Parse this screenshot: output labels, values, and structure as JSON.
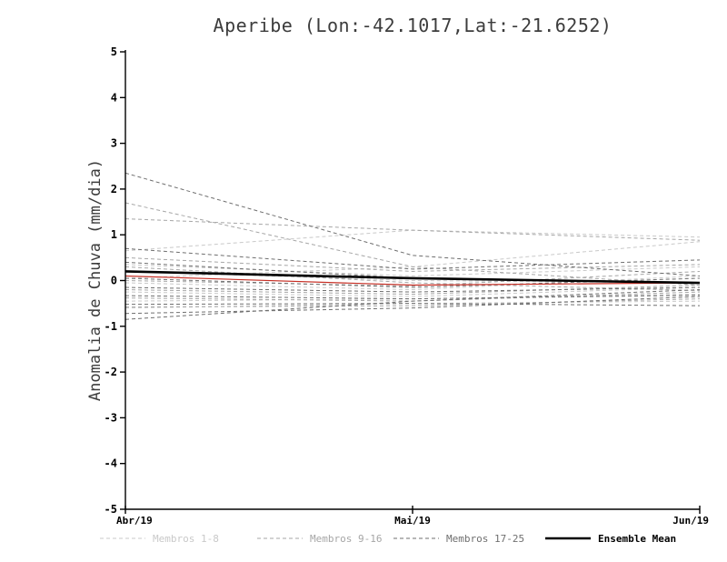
{
  "chart_data": {
    "type": "line",
    "title": "Aperibe (Lon:-42.1017,Lat:-21.6252)",
    "ylabel": "Anomalia de Chuva (mm/dia)",
    "x_tick_labels": [
      "Abr/19",
      "Mai/19",
      "Jun/19"
    ],
    "ylim": [
      -5,
      5
    ],
    "y_ticks": [
      -5,
      -4,
      -3,
      -2,
      -1,
      0,
      1,
      2,
      3,
      4,
      5
    ],
    "grid": false,
    "groups": [
      {
        "name": "Membros 1-8",
        "color": "#c9c9c9",
        "dash": "4 3",
        "width": 1,
        "members": [
          [
            0.65,
            1.1,
            0.95
          ],
          [
            0.05,
            0.3,
            0.85
          ],
          [
            0.35,
            0.1,
            0.3
          ],
          [
            -0.05,
            -0.2,
            0.1
          ],
          [
            -0.25,
            -0.35,
            -0.15
          ],
          [
            -0.45,
            -0.4,
            -0.3
          ],
          [
            0.2,
            0.0,
            -0.05
          ],
          [
            -0.6,
            -0.5,
            -0.45
          ]
        ]
      },
      {
        "name": "Membros 9-16",
        "color": "#a6a6a6",
        "dash": "4 3",
        "width": 1,
        "members": [
          [
            1.7,
            0.3,
            -0.1
          ],
          [
            1.35,
            1.1,
            0.88
          ],
          [
            0.5,
            0.2,
            0.35
          ],
          [
            0.0,
            -0.12,
            0.2
          ],
          [
            -0.2,
            -0.3,
            -0.1
          ],
          [
            -0.38,
            -0.45,
            -0.25
          ],
          [
            -0.58,
            -0.55,
            -0.4
          ],
          [
            0.3,
            -0.05,
            -0.22
          ]
        ]
      },
      {
        "name": "Membros 17-25",
        "color": "#6f6f6f",
        "dash": "4 3",
        "width": 1,
        "members": [
          [
            2.35,
            0.55,
            0.1
          ],
          [
            0.7,
            0.25,
            0.45
          ],
          [
            0.4,
            0.05,
            -0.05
          ],
          [
            0.05,
            -0.15,
            0.05
          ],
          [
            -0.15,
            -0.25,
            -0.15
          ],
          [
            -0.33,
            -0.4,
            -0.32
          ],
          [
            -0.52,
            -0.5,
            -0.55
          ],
          [
            -0.72,
            -0.6,
            -0.35
          ],
          [
            -0.85,
            -0.45,
            -0.2
          ]
        ]
      }
    ],
    "special_series": [
      {
        "name": "Red line",
        "color": "#c62f25",
        "width": 1.2,
        "dash": "",
        "values": [
          0.1,
          -0.1,
          -0.05
        ]
      },
      {
        "name": "Ensemble Mean",
        "color": "#000000",
        "width": 2.6,
        "dash": "",
        "values": [
          0.2,
          0.05,
          -0.05
        ]
      }
    ],
    "legend": [
      {
        "label": "Membros 1-8",
        "color": "#c9c9c9",
        "dash": true,
        "width": 1
      },
      {
        "label": "Membros 9-16",
        "color": "#a6a6a6",
        "dash": true,
        "width": 1
      },
      {
        "label": "Membros 17-25",
        "color": "#6f6f6f",
        "dash": true,
        "width": 1
      },
      {
        "label": "Ensemble Mean",
        "color": "#000000",
        "dash": false,
        "width": 2.6
      }
    ]
  }
}
